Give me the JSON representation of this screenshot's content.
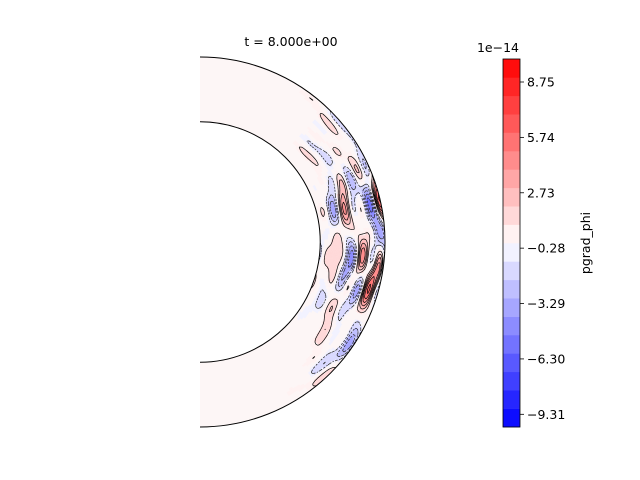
{
  "chart_data": {
    "type": "heatmap",
    "subtype": "filled-contour-annulus",
    "title": "t = 8.000e+00",
    "colorbar": {
      "label": "pgrad_phi",
      "offset_text": "1e−14",
      "ticks": [
        8.75,
        5.74,
        2.73,
        -0.28,
        -3.29,
        -6.3,
        -9.31
      ],
      "tick_labels": [
        "8.75",
        "5.74",
        "2.73",
        "−0.28",
        "−3.29",
        "−6.30",
        "−9.31"
      ],
      "range": [
        -10.0,
        10.0
      ],
      "levels": 20,
      "colormap": "bwr",
      "placement": "right"
    },
    "domain": {
      "shape": "half-annulus (right half)",
      "inner_radius_ratio": 0.65,
      "theta_range_deg": [
        -90,
        90
      ]
    },
    "colors": {
      "negative": "#0000ff",
      "neutral": "#ffffff",
      "positive": "#ff0000",
      "contour_lines": "#000000"
    }
  }
}
